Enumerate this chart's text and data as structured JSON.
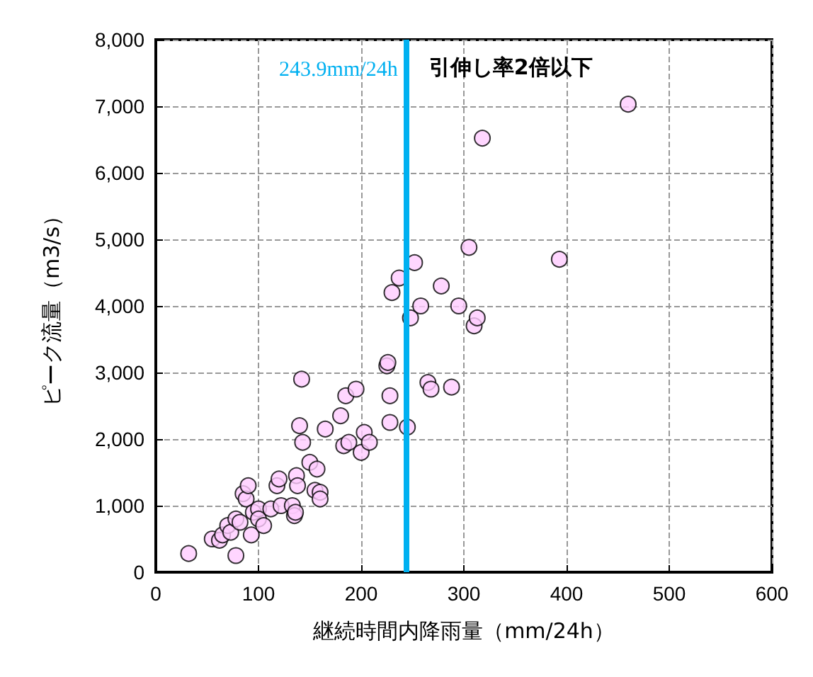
{
  "chart_data": {
    "type": "scatter",
    "xlabel": "継続時間内降雨量（mm/24h）",
    "ylabel": "ピーク流量（m3/s）",
    "x": [
      32,
      78,
      55,
      62,
      65,
      70,
      73,
      78,
      82,
      85,
      88,
      90,
      93,
      95,
      100,
      100,
      105,
      112,
      118,
      120,
      122,
      133,
      135,
      136,
      137,
      138,
      140,
      142,
      143,
      150,
      155,
      157,
      160,
      160,
      165,
      180,
      183,
      185,
      188,
      195,
      200,
      203,
      208,
      225,
      226,
      228,
      228,
      230,
      237,
      245,
      248,
      252,
      258,
      265,
      268,
      278,
      288,
      295,
      305,
      310,
      313,
      318,
      393,
      460
    ],
    "series": [
      {
        "color": "#ffccff",
        "values": [
          280,
          250,
          500,
          480,
          560,
          700,
          600,
          800,
          750,
          1180,
          1100,
          1300,
          560,
          900,
          950,
          800,
          700,
          950,
          1300,
          1400,
          1000,
          1000,
          850,
          900,
          1450,
          1300,
          2200,
          2900,
          1950,
          1650,
          1230,
          1550,
          1200,
          1100,
          2150,
          2350,
          1900,
          2650,
          1950,
          2750,
          1800,
          2100,
          1950,
          3100,
          3150,
          2250,
          2650,
          4200,
          4420,
          2180,
          3820,
          4650,
          4000,
          2850,
          2750,
          4300,
          2780,
          4000,
          4880,
          3700,
          3820,
          6520,
          4700,
          7030
        ]
      }
    ],
    "xlim": [
      0,
      600
    ],
    "xticks": [
      0,
      100,
      200,
      300,
      400,
      500,
      600
    ],
    "ylim": [
      0,
      8000
    ],
    "yticks": [
      0,
      {
        "value": 1000,
        "label": "1,000"
      },
      {
        "value": 2000,
        "label": "2,000"
      },
      {
        "value": 3000,
        "label": "3,000"
      },
      {
        "value": 4000,
        "label": "4,000"
      },
      {
        "value": 5000,
        "label": "5,000"
      },
      {
        "value": 6000,
        "label": "6,000"
      },
      {
        "value": 7000,
        "label": "7,000"
      },
      {
        "value": 8000,
        "label": "8,000"
      }
    ],
    "ref_lines": [
      {
        "axis": "x",
        "value": 243.9,
        "label": "243.9mm/24h",
        "color": "#00b0f0"
      }
    ],
    "annotations": [
      "引伸し率2倍以下"
    ],
    "grid": true,
    "marker": "circle"
  }
}
